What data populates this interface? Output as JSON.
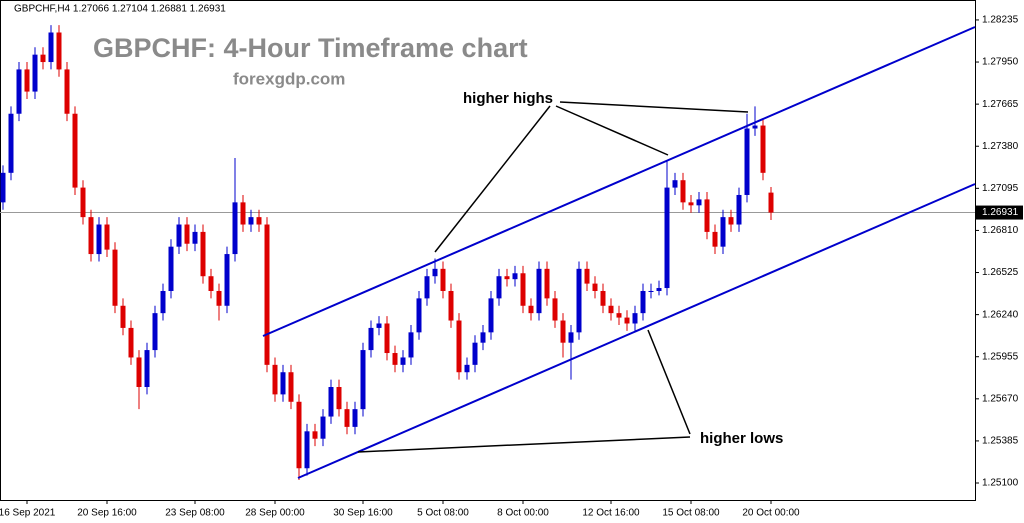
{
  "chart_data": {
    "type": "candlestick",
    "header": "GBPCHF,H4  1.27066 1.27104 1.26881 1.26931",
    "title": "GBPCHF: 4-Hour Timeframe chart",
    "subtitle": "forexgdp.com",
    "annotations": [
      "higher highs",
      "higher lows"
    ],
    "up_color": "#0000cc",
    "down_color": "#dd0000",
    "categories": [
      null,
      null,
      null,
      "16 Sep 2021",
      null,
      null,
      null,
      null,
      null,
      null,
      null,
      null,
      null,
      "20 Sep 16:00",
      null,
      null,
      null,
      null,
      null,
      null,
      null,
      null,
      null,
      null,
      "23 Sep 08:00",
      null,
      null,
      null,
      null,
      null,
      null,
      null,
      null,
      null,
      "28 Sep 00:00",
      null,
      null,
      null,
      null,
      null,
      null,
      null,
      null,
      null,
      null,
      "30 Sep 16:00",
      null,
      null,
      null,
      null,
      null,
      null,
      null,
      null,
      null,
      "5 Oct 08:00",
      null,
      null,
      null,
      null,
      null,
      null,
      null,
      null,
      null,
      "8 Oct 00:00",
      null,
      null,
      null,
      null,
      null,
      null,
      null,
      null,
      null,
      null,
      "12 Oct 16:00",
      null,
      null,
      null,
      null,
      null,
      null,
      null,
      null,
      null,
      "15 Oct 08:00",
      null,
      null,
      null,
      null,
      null,
      null,
      null,
      null,
      null,
      "20 Oct 00:00"
    ],
    "open": [
      1.27,
      1.272,
      1.276,
      1.279,
      1.2775,
      1.28,
      1.2795,
      1.2815,
      1.279,
      1.276,
      1.271,
      1.269,
      1.2665,
      1.2685,
      1.2668,
      1.263,
      1.2615,
      1.2595,
      1.2575,
      1.26,
      1.2625,
      1.264,
      1.267,
      1.2685,
      1.2672,
      1.268,
      1.265,
      1.264,
      1.263,
      1.2665,
      1.27,
      1.2685,
      1.269,
      1.2685,
      1.259,
      1.257,
      1.2585,
      1.2565,
      1.252,
      1.2545,
      1.254,
      1.2555,
      1.2575,
      1.256,
      1.2548,
      1.256,
      1.26,
      1.2615,
      1.2618,
      1.2598,
      1.259,
      1.2595,
      1.2612,
      1.2635,
      1.265,
      1.2655,
      1.264,
      1.262,
      1.2585,
      1.259,
      1.2605,
      1.2612,
      1.2635,
      1.265,
      1.2648,
      1.2652,
      1.263,
      1.2625,
      1.2655,
      1.2635,
      1.262,
      1.2605,
      1.2612,
      1.2655,
      1.2645,
      1.264,
      1.263,
      1.2625,
      1.2622,
      1.2618,
      1.2625,
      1.264,
      1.264,
      1.2642,
      1.271,
      1.2715,
      1.27,
      1.2698,
      1.2702,
      1.268,
      1.267,
      1.269,
      1.2685,
      1.2705,
      1.275,
      1.2752,
      1.27066
    ],
    "high": [
      1.2725,
      1.2765,
      1.2795,
      1.2795,
      1.2805,
      1.2805,
      1.282,
      1.282,
      1.2795,
      1.2765,
      1.2715,
      1.2695,
      1.269,
      1.269,
      1.2673,
      1.2635,
      1.262,
      1.26,
      1.2605,
      1.263,
      1.2645,
      1.2675,
      1.269,
      1.269,
      1.2685,
      1.2685,
      1.2655,
      1.2645,
      1.267,
      1.273,
      1.2705,
      1.2695,
      1.2695,
      1.269,
      1.2595,
      1.259,
      1.259,
      1.257,
      1.255,
      1.255,
      1.256,
      1.258,
      1.258,
      1.2565,
      1.2565,
      1.2605,
      1.262,
      1.2623,
      1.2623,
      1.2603,
      1.26,
      1.2617,
      1.264,
      1.2655,
      1.2662,
      1.266,
      1.2645,
      1.2625,
      1.2595,
      1.261,
      1.2617,
      1.264,
      1.2655,
      1.2655,
      1.2657,
      1.2657,
      1.2635,
      1.266,
      1.266,
      1.264,
      1.2625,
      1.2617,
      1.266,
      1.266,
      1.265,
      1.2645,
      1.2635,
      1.263,
      1.2627,
      1.263,
      1.2645,
      1.2645,
      1.2647,
      1.2728,
      1.272,
      1.272,
      1.2705,
      1.2707,
      1.2707,
      1.2685,
      1.2695,
      1.2695,
      1.271,
      1.276,
      1.2765,
      1.2757,
      1.27104
    ],
    "low": [
      1.2695,
      1.2715,
      1.2755,
      1.277,
      1.277,
      1.279,
      1.279,
      1.2785,
      1.2755,
      1.2705,
      1.2685,
      1.266,
      1.266,
      1.2663,
      1.2625,
      1.261,
      1.259,
      1.256,
      1.257,
      1.2595,
      1.262,
      1.2635,
      1.2665,
      1.2667,
      1.2667,
      1.2645,
      1.2635,
      1.262,
      1.2625,
      1.266,
      1.268,
      1.268,
      1.268,
      1.2585,
      1.2565,
      1.2565,
      1.256,
      1.2512,
      1.2515,
      1.2535,
      1.2535,
      1.255,
      1.2555,
      1.2543,
      1.2543,
      1.2555,
      1.2595,
      1.261,
      1.2593,
      1.2585,
      1.2585,
      1.259,
      1.2607,
      1.263,
      1.2645,
      1.2635,
      1.2615,
      1.258,
      1.258,
      1.2585,
      1.26,
      1.2607,
      1.263,
      1.2643,
      1.2643,
      1.2625,
      1.262,
      1.262,
      1.263,
      1.2615,
      1.2595,
      1.258,
      1.2607,
      1.264,
      1.2635,
      1.2625,
      1.262,
      1.2617,
      1.2613,
      1.2613,
      1.262,
      1.2635,
      1.2637,
      1.2637,
      1.2705,
      1.2695,
      1.2693,
      1.2693,
      1.2675,
      1.2665,
      1.2665,
      1.268,
      1.268,
      1.27,
      1.2745,
      1.2715,
      1.26881
    ],
    "close": [
      1.272,
      1.276,
      1.279,
      1.2775,
      1.28,
      1.2795,
      1.2815,
      1.279,
      1.276,
      1.271,
      1.269,
      1.2665,
      1.2685,
      1.2668,
      1.263,
      1.2615,
      1.2595,
      1.2575,
      1.26,
      1.2625,
      1.264,
      1.267,
      1.2685,
      1.2672,
      1.268,
      1.265,
      1.264,
      1.263,
      1.2665,
      1.27,
      1.2685,
      1.269,
      1.2685,
      1.259,
      1.257,
      1.2585,
      1.2565,
      1.252,
      1.2545,
      1.254,
      1.2555,
      1.2575,
      1.256,
      1.2548,
      1.256,
      1.26,
      1.2615,
      1.2618,
      1.2598,
      1.259,
      1.2595,
      1.2612,
      1.2635,
      1.265,
      1.2655,
      1.264,
      1.262,
      1.2585,
      1.259,
      1.2605,
      1.2612,
      1.2635,
      1.265,
      1.2648,
      1.2652,
      1.263,
      1.2625,
      1.2655,
      1.2635,
      1.262,
      1.2605,
      1.2612,
      1.2655,
      1.2645,
      1.264,
      1.263,
      1.2625,
      1.2622,
      1.2618,
      1.2625,
      1.264,
      1.264,
      1.2642,
      1.271,
      1.2715,
      1.27,
      1.2698,
      1.2702,
      1.268,
      1.267,
      1.269,
      1.2685,
      1.2705,
      1.275,
      1.2752,
      1.272,
      1.26931
    ],
    "current_price": {
      "value": 1.26931,
      "label": "1.26931"
    },
    "ylim": [
      1.24985,
      1.2837
    ],
    "yticks": [
      {
        "value": 1.28235,
        "label": "1.28235"
      },
      {
        "value": 1.2795,
        "label": "1.27950"
      },
      {
        "value": 1.27665,
        "label": "1.27665"
      },
      {
        "value": 1.2738,
        "label": "1.27380"
      },
      {
        "value": 1.27095,
        "label": "1.27095"
      },
      {
        "value": 1.2681,
        "label": "1.26810"
      },
      {
        "value": 1.26525,
        "label": "1.26525"
      },
      {
        "value": 1.2624,
        "label": "1.26240"
      },
      {
        "value": 1.25955,
        "label": "1.25955"
      },
      {
        "value": 1.2567,
        "label": "1.25670"
      },
      {
        "value": 1.25385,
        "label": "1.25385"
      },
      {
        "value": 1.251,
        "label": "1.25100"
      }
    ]
  }
}
